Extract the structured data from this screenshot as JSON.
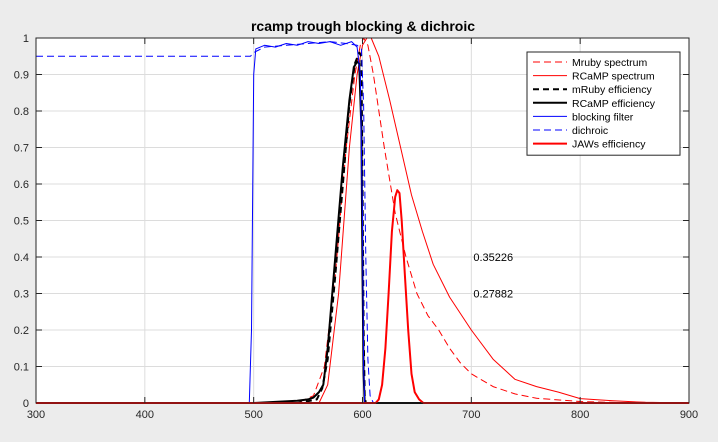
{
  "chart_data": {
    "type": "line",
    "title": "rcamp trough blocking & dichroic",
    "xlabel": "",
    "ylabel": "",
    "xlim": [
      300,
      900
    ],
    "ylim": [
      0,
      1
    ],
    "xticks": [
      300,
      400,
      500,
      600,
      700,
      800,
      900
    ],
    "yticks": [
      0,
      0.1,
      0.2,
      0.3,
      0.4,
      0.5,
      0.6,
      0.7,
      0.8,
      0.9,
      1
    ],
    "xtick_labels": [
      "300",
      "400",
      "500",
      "600",
      "700",
      "800",
      "900"
    ],
    "ytick_labels": [
      "0",
      "0.1",
      "0.2",
      "0.3",
      "0.4",
      "0.5",
      "0.6",
      "0.7",
      "0.8",
      "0.9",
      "1"
    ],
    "grid": true,
    "legend_position": "top-right",
    "series": [
      {
        "name": "Mruby spectrum",
        "color": "#ff0000",
        "style": "dashed",
        "width": 1,
        "points": [
          [
            300,
            0
          ],
          [
            540,
            0
          ],
          [
            555,
            0.02
          ],
          [
            565,
            0.1
          ],
          [
            575,
            0.35
          ],
          [
            585,
            0.7
          ],
          [
            593,
            0.9
          ],
          [
            598,
            0.98
          ],
          [
            601,
            1.0
          ],
          [
            605,
            0.98
          ],
          [
            610,
            0.9
          ],
          [
            620,
            0.7
          ],
          [
            630,
            0.52
          ],
          [
            640,
            0.4
          ],
          [
            650,
            0.3
          ],
          [
            660,
            0.24
          ],
          [
            670,
            0.2
          ],
          [
            680,
            0.15
          ],
          [
            690,
            0.11
          ],
          [
            700,
            0.08
          ],
          [
            720,
            0.045
          ],
          [
            740,
            0.025
          ],
          [
            760,
            0.013
          ],
          [
            800,
            0.004
          ],
          [
            850,
            0
          ],
          [
            900,
            0
          ]
        ]
      },
      {
        "name": "RCaMP spectrum",
        "color": "#ff0000",
        "style": "solid",
        "width": 1,
        "points": [
          [
            300,
            0
          ],
          [
            560,
            0
          ],
          [
            568,
            0.05
          ],
          [
            578,
            0.3
          ],
          [
            588,
            0.7
          ],
          [
            595,
            0.9
          ],
          [
            600,
            0.98
          ],
          [
            604,
            1.0
          ],
          [
            608,
            1.0
          ],
          [
            615,
            0.95
          ],
          [
            625,
            0.83
          ],
          [
            635,
            0.7
          ],
          [
            645,
            0.57
          ],
          [
            655,
            0.47
          ],
          [
            665,
            0.38
          ],
          [
            680,
            0.29
          ],
          [
            700,
            0.2
          ],
          [
            720,
            0.12
          ],
          [
            740,
            0.065
          ],
          [
            760,
            0.045
          ],
          [
            780,
            0.03
          ],
          [
            800,
            0.012
          ],
          [
            830,
            0.006
          ],
          [
            860,
            0.002
          ],
          [
            900,
            0
          ]
        ]
      },
      {
        "name": "mRuby efficiency",
        "color": "#000000",
        "style": "dashed",
        "width": 2,
        "points": [
          [
            300,
            0
          ],
          [
            540,
            0
          ],
          [
            550,
            0.005
          ],
          [
            558,
            0.01
          ],
          [
            563,
            0.04
          ],
          [
            568,
            0.12
          ],
          [
            575,
            0.35
          ],
          [
            582,
            0.6
          ],
          [
            588,
            0.82
          ],
          [
            593,
            0.93
          ],
          [
            597,
            0.96
          ],
          [
            599,
            0.95
          ],
          [
            600,
            0.6
          ],
          [
            601,
            0.2
          ],
          [
            602,
            0.02
          ],
          [
            603,
            0
          ],
          [
            900,
            0
          ]
        ]
      },
      {
        "name": "RCaMP efficiency",
        "color": "#000000",
        "style": "solid",
        "width": 2,
        "points": [
          [
            300,
            0
          ],
          [
            500,
            0
          ],
          [
            520,
            0.003
          ],
          [
            540,
            0.006
          ],
          [
            550,
            0.01
          ],
          [
            555,
            0.015
          ],
          [
            560,
            0.03
          ],
          [
            564,
            0.05
          ],
          [
            568,
            0.15
          ],
          [
            575,
            0.4
          ],
          [
            582,
            0.65
          ],
          [
            588,
            0.83
          ],
          [
            592,
            0.92
          ],
          [
            595,
            0.935
          ],
          [
            597,
            0.93
          ],
          [
            599,
            0.75
          ],
          [
            600,
            0.35
          ],
          [
            601,
            0.08
          ],
          [
            602,
            0
          ],
          [
            900,
            0
          ]
        ]
      },
      {
        "name": "blocking filter",
        "color": "#0000ff",
        "style": "solid",
        "width": 1,
        "points": [
          [
            300,
            0
          ],
          [
            496,
            0
          ],
          [
            498,
            0.2
          ],
          [
            500,
            0.9
          ],
          [
            502,
            0.97
          ],
          [
            510,
            0.98
          ],
          [
            520,
            0.975
          ],
          [
            530,
            0.985
          ],
          [
            540,
            0.98
          ],
          [
            550,
            0.99
          ],
          [
            560,
            0.985
          ],
          [
            570,
            0.99
          ],
          [
            580,
            0.98
          ],
          [
            590,
            0.99
          ],
          [
            595,
            0.975
          ],
          [
            598,
            0.9
          ],
          [
            600,
            0.5
          ],
          [
            601,
            0.1
          ],
          [
            602,
            0
          ],
          [
            900,
            0
          ]
        ]
      },
      {
        "name": "dichroic",
        "color": "#0000ff",
        "style": "dashed",
        "width": 1,
        "points": [
          [
            300,
            0.95
          ],
          [
            490,
            0.95
          ],
          [
            497,
            0.95
          ],
          [
            500,
            0.96
          ],
          [
            510,
            0.975
          ],
          [
            530,
            0.98
          ],
          [
            550,
            0.985
          ],
          [
            570,
            0.99
          ],
          [
            585,
            0.985
          ],
          [
            595,
            0.98
          ],
          [
            599,
            0.97
          ],
          [
            601,
            0.82
          ],
          [
            603,
            0.4
          ],
          [
            605,
            0.12
          ],
          [
            607,
            0.02
          ],
          [
            610,
            0
          ],
          [
            900,
            0
          ]
        ]
      },
      {
        "name": "JAWs efficiency",
        "color": "#ff0000",
        "style": "solid",
        "width": 2,
        "points": [
          [
            300,
            0
          ],
          [
            612,
            0
          ],
          [
            615,
            0.01
          ],
          [
            618,
            0.05
          ],
          [
            621,
            0.15
          ],
          [
            624,
            0.3
          ],
          [
            627,
            0.47
          ],
          [
            630,
            0.565
          ],
          [
            632,
            0.583
          ],
          [
            634,
            0.575
          ],
          [
            636,
            0.5
          ],
          [
            639,
            0.35
          ],
          [
            642,
            0.2
          ],
          [
            645,
            0.08
          ],
          [
            648,
            0.03
          ],
          [
            652,
            0.01
          ],
          [
            656,
            0
          ],
          [
            900,
            0
          ]
        ]
      }
    ],
    "annotations": [
      {
        "text": "0.35226",
        "x": 700,
        "y": 0.4
      },
      {
        "text": "0.27882",
        "x": 700,
        "y": 0.3
      }
    ]
  }
}
